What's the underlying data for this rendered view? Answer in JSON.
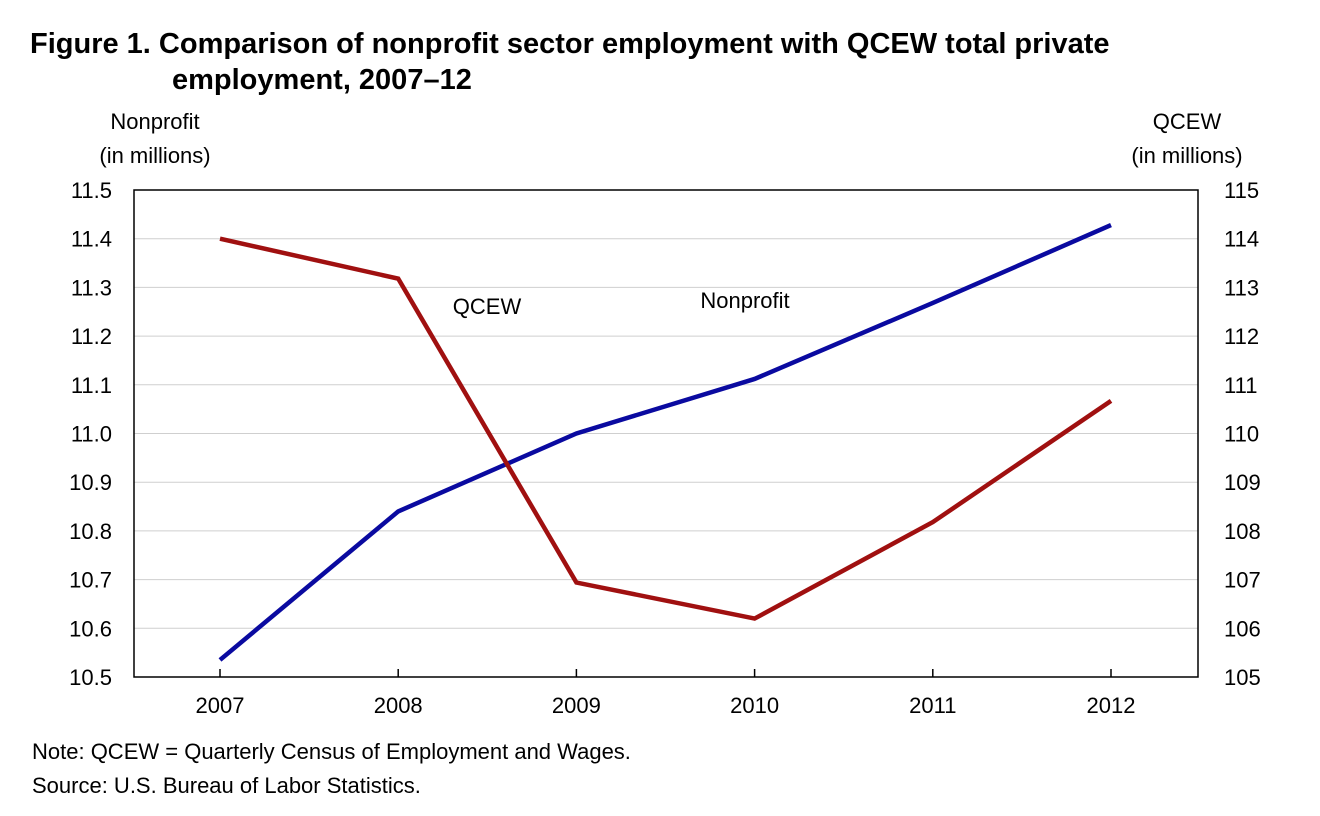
{
  "title": {
    "line1": "Figure 1. Comparison of nonprofit sector employment with QCEW total private",
    "line2": "employment, 2007–12"
  },
  "chart_data": {
    "type": "line",
    "x": [
      "2007",
      "2008",
      "2009",
      "2010",
      "2011",
      "2012"
    ],
    "left_axis": {
      "label_line1": "Nonprofit",
      "label_line2": "(in millions)",
      "ylim": [
        10.5,
        11.5
      ],
      "ticks": [
        "10.5",
        "10.6",
        "10.7",
        "10.8",
        "10.9",
        "11.0",
        "11.1",
        "11.2",
        "11.3",
        "11.4",
        "11.5"
      ]
    },
    "right_axis": {
      "label_line1": "QCEW",
      "label_line2": "(in millions)",
      "ylim": [
        105,
        115
      ],
      "ticks": [
        "105",
        "106",
        "107",
        "108",
        "109",
        "110",
        "111",
        "112",
        "113",
        "114",
        "115"
      ]
    },
    "series": [
      {
        "name": "Nonprofit",
        "axis": "left",
        "color": "#0a0aa0",
        "values": [
          10.535,
          10.84,
          11.0,
          11.112,
          11.268,
          11.428
        ]
      },
      {
        "name": "QCEW",
        "axis": "right",
        "color": "#a01010",
        "values": [
          114.0,
          113.18,
          106.94,
          106.2,
          108.18,
          110.67
        ]
      }
    ],
    "grid": true,
    "legend": "inline labels"
  },
  "notes": {
    "note": "Note: QCEW = Quarterly Census of Employment and Wages.",
    "source": "Source: U.S. Bureau of Labor Statistics."
  }
}
